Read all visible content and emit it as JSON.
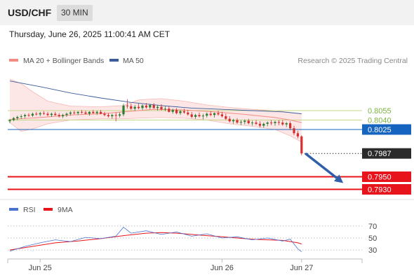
{
  "header": {
    "symbol": "USD/CHF",
    "interval": "30 MIN",
    "datetime": "Thursday, June 26, 2025 11:00:41 AM CET"
  },
  "legend": {
    "ma20_bb": "MA 20 + Bollinger Bands",
    "ma50": "MA 50",
    "source": "Research © 2025 Trading Central"
  },
  "colors": {
    "bullish": "#2e7d32",
    "bearish": "#d32f2f",
    "support": "#e8141c",
    "pivot": "#1565c0",
    "target_line": "#7cb342",
    "arrow": "#2f5fa8",
    "ma20": "#f28b82",
    "ma50": "#3b5b9a",
    "rsi": "#4a72d1",
    "rsi_ma": "#e8141c"
  },
  "price_levels": [
    {
      "label": "0.8055",
      "value": 0.8055,
      "type": "resistance"
    },
    {
      "label": "0.8040",
      "value": 0.804,
      "type": "resistance"
    },
    {
      "label": "0.8025",
      "value": 0.8025,
      "type": "pivot"
    },
    {
      "label": "0.7987",
      "value": 0.7987,
      "type": "last"
    },
    {
      "label": "0.7950",
      "value": 0.795,
      "type": "support"
    },
    {
      "label": "0.7930",
      "value": 0.793,
      "type": "support"
    }
  ],
  "rsi_panel": {
    "rsi_label": "RSI",
    "ma_label": "9MA",
    "ticks": [
      "70",
      "50",
      "30"
    ]
  },
  "x_axis": {
    "labels": [
      "Jun 25",
      "Jun 26",
      "Jun 27"
    ]
  },
  "chart_data": {
    "type": "candlestick",
    "ylim": [
      0.7925,
      0.8125
    ],
    "x_ticks": [
      {
        "label": "Jun 25",
        "index": 8
      },
      {
        "label": "Jun 26",
        "index": 56
      },
      {
        "label": "Jun 27",
        "index": 77
      }
    ],
    "candles": [
      [
        0.8038,
        0.8042,
        0.8035,
        0.804
      ],
      [
        0.804,
        0.8045,
        0.8038,
        0.8043
      ],
      [
        0.8043,
        0.8047,
        0.804,
        0.8045
      ],
      [
        0.8045,
        0.8049,
        0.8042,
        0.8046
      ],
      [
        0.8046,
        0.805,
        0.8043,
        0.8048
      ],
      [
        0.8048,
        0.8051,
        0.8045,
        0.8047
      ],
      [
        0.8047,
        0.8052,
        0.8045,
        0.805
      ],
      [
        0.805,
        0.8053,
        0.8047,
        0.8049
      ],
      [
        0.8049,
        0.8053,
        0.8046,
        0.8051
      ],
      [
        0.8051,
        0.8054,
        0.8048,
        0.805
      ],
      [
        0.805,
        0.8053,
        0.8046,
        0.8048
      ],
      [
        0.8048,
        0.8052,
        0.8045,
        0.805
      ],
      [
        0.805,
        0.8053,
        0.8047,
        0.8048
      ],
      [
        0.8048,
        0.8051,
        0.8044,
        0.8046
      ],
      [
        0.8046,
        0.805,
        0.8043,
        0.8048
      ],
      [
        0.8048,
        0.8052,
        0.8045,
        0.805
      ],
      [
        0.805,
        0.8054,
        0.8047,
        0.8052
      ],
      [
        0.8052,
        0.8055,
        0.8049,
        0.8051
      ],
      [
        0.8051,
        0.8054,
        0.8048,
        0.8053
      ],
      [
        0.8053,
        0.8056,
        0.805,
        0.8052
      ],
      [
        0.8052,
        0.8055,
        0.8049,
        0.805
      ],
      [
        0.805,
        0.8054,
        0.8047,
        0.8053
      ],
      [
        0.8053,
        0.8056,
        0.805,
        0.8051
      ],
      [
        0.8051,
        0.8055,
        0.8048,
        0.8053
      ],
      [
        0.8053,
        0.8056,
        0.8049,
        0.805
      ],
      [
        0.805,
        0.8053,
        0.8046,
        0.8048
      ],
      [
        0.8048,
        0.8051,
        0.8044,
        0.8046
      ],
      [
        0.8046,
        0.805,
        0.8042,
        0.8048
      ],
      [
        0.8048,
        0.8052,
        0.8038,
        0.8047
      ],
      [
        0.8047,
        0.8052,
        0.8044,
        0.8049
      ],
      [
        0.8049,
        0.8066,
        0.8046,
        0.8063
      ],
      [
        0.8063,
        0.8073,
        0.8058,
        0.8062
      ],
      [
        0.8062,
        0.8066,
        0.8056,
        0.8058
      ],
      [
        0.8058,
        0.8064,
        0.8055,
        0.8061
      ],
      [
        0.8061,
        0.8066,
        0.8057,
        0.8059
      ],
      [
        0.8059,
        0.8065,
        0.8056,
        0.8063
      ],
      [
        0.8063,
        0.8067,
        0.8058,
        0.806
      ],
      [
        0.806,
        0.8066,
        0.8057,
        0.8064
      ],
      [
        0.8064,
        0.8067,
        0.8058,
        0.8059
      ],
      [
        0.8059,
        0.8064,
        0.8055,
        0.8061
      ],
      [
        0.8061,
        0.8065,
        0.8055,
        0.8057
      ],
      [
        0.8057,
        0.8062,
        0.8054,
        0.8058
      ],
      [
        0.8058,
        0.8062,
        0.8052,
        0.8053
      ],
      [
        0.8053,
        0.8058,
        0.805,
        0.8056
      ],
      [
        0.8056,
        0.8059,
        0.8049,
        0.8051
      ],
      [
        0.8051,
        0.8056,
        0.8048,
        0.8054
      ],
      [
        0.8054,
        0.8058,
        0.805,
        0.8052
      ],
      [
        0.8052,
        0.8056,
        0.8047,
        0.8049
      ],
      [
        0.8049,
        0.8053,
        0.8043,
        0.8045
      ],
      [
        0.8045,
        0.805,
        0.8042,
        0.8048
      ],
      [
        0.8048,
        0.8052,
        0.8044,
        0.8046
      ],
      [
        0.8046,
        0.805,
        0.8041,
        0.8047
      ],
      [
        0.8047,
        0.8052,
        0.8044,
        0.805
      ],
      [
        0.805,
        0.8054,
        0.8046,
        0.8048
      ],
      [
        0.8048,
        0.8052,
        0.8044,
        0.8051
      ],
      [
        0.8051,
        0.8055,
        0.8047,
        0.8049
      ],
      [
        0.8049,
        0.8053,
        0.8044,
        0.8046
      ],
      [
        0.8046,
        0.805,
        0.804,
        0.8042
      ],
      [
        0.8042,
        0.8046,
        0.8036,
        0.8038
      ],
      [
        0.8038,
        0.8042,
        0.8034,
        0.804
      ],
      [
        0.804,
        0.8043,
        0.8034,
        0.8036
      ],
      [
        0.8036,
        0.804,
        0.8032,
        0.8037
      ],
      [
        0.8037,
        0.8041,
        0.8033,
        0.8039
      ],
      [
        0.8039,
        0.8042,
        0.8033,
        0.8035
      ],
      [
        0.8035,
        0.8039,
        0.8031,
        0.8036
      ],
      [
        0.8036,
        0.804,
        0.8032,
        0.8034
      ],
      [
        0.8034,
        0.8038,
        0.8028,
        0.8031
      ],
      [
        0.8031,
        0.8036,
        0.8028,
        0.8034
      ],
      [
        0.8034,
        0.8038,
        0.803,
        0.8036
      ],
      [
        0.8036,
        0.804,
        0.8032,
        0.8035
      ],
      [
        0.8035,
        0.8039,
        0.8031,
        0.8037
      ],
      [
        0.8037,
        0.804,
        0.8032,
        0.8036
      ],
      [
        0.8036,
        0.804,
        0.8031,
        0.8033
      ],
      [
        0.8033,
        0.8037,
        0.8029,
        0.8035
      ],
      [
        0.8035,
        0.8038,
        0.8024,
        0.8027
      ],
      [
        0.8027,
        0.8031,
        0.8016,
        0.8019
      ],
      [
        0.8019,
        0.8023,
        0.8011,
        0.8014
      ],
      [
        0.8014,
        0.8016,
        0.7984,
        0.7987
      ]
    ],
    "ma20": [
      [
        0,
        0.8041
      ],
      [
        8,
        0.8044
      ],
      [
        16,
        0.8048
      ],
      [
        24,
        0.805
      ],
      [
        30,
        0.8053
      ],
      [
        38,
        0.8057
      ],
      [
        46,
        0.8056
      ],
      [
        54,
        0.8053
      ],
      [
        62,
        0.8049
      ],
      [
        70,
        0.8044
      ],
      [
        74,
        0.804
      ],
      [
        77,
        0.8036
      ]
    ],
    "ma50": [
      [
        0,
        0.8102
      ],
      [
        8,
        0.8093
      ],
      [
        16,
        0.8083
      ],
      [
        24,
        0.8075
      ],
      [
        32,
        0.8068
      ],
      [
        40,
        0.8063
      ],
      [
        48,
        0.8059
      ],
      [
        56,
        0.8057
      ],
      [
        64,
        0.8055
      ],
      [
        72,
        0.8053
      ],
      [
        77,
        0.805
      ]
    ],
    "bb_upper": [
      [
        0,
        0.8105
      ],
      [
        3,
        0.8098
      ],
      [
        6,
        0.8085
      ],
      [
        10,
        0.807
      ],
      [
        16,
        0.8062
      ],
      [
        24,
        0.8061
      ],
      [
        30,
        0.8063
      ],
      [
        34,
        0.8072
      ],
      [
        40,
        0.8074
      ],
      [
        46,
        0.807
      ],
      [
        52,
        0.8064
      ],
      [
        58,
        0.806
      ],
      [
        64,
        0.8057
      ],
      [
        70,
        0.8055
      ],
      [
        74,
        0.8052
      ],
      [
        77,
        0.805
      ]
    ],
    "bb_lower": [
      [
        0,
        0.8036
      ],
      [
        3,
        0.8022
      ],
      [
        6,
        0.8026
      ],
      [
        10,
        0.8034
      ],
      [
        16,
        0.804
      ],
      [
        24,
        0.8042
      ],
      [
        30,
        0.8042
      ],
      [
        34,
        0.8043
      ],
      [
        40,
        0.8044
      ],
      [
        46,
        0.8043
      ],
      [
        52,
        0.804
      ],
      [
        58,
        0.8034
      ],
      [
        64,
        0.803
      ],
      [
        70,
        0.8025
      ],
      [
        74,
        0.8015
      ],
      [
        77,
        0.8005
      ]
    ],
    "forecast_arrow": {
      "from_index": 78,
      "from_value": 0.7987,
      "to_index": 88,
      "to_value": 0.794
    },
    "rsi": {
      "ticks": [
        70,
        50,
        30
      ],
      "ylim": [
        15,
        85
      ],
      "rsi": [
        [
          0,
          28
        ],
        [
          4,
          36
        ],
        [
          8,
          42
        ],
        [
          12,
          47
        ],
        [
          16,
          44
        ],
        [
          20,
          51
        ],
        [
          24,
          49
        ],
        [
          28,
          53
        ],
        [
          30,
          68
        ],
        [
          32,
          58
        ],
        [
          36,
          62
        ],
        [
          40,
          56
        ],
        [
          44,
          60
        ],
        [
          48,
          53
        ],
        [
          52,
          57
        ],
        [
          56,
          50
        ],
        [
          60,
          52
        ],
        [
          64,
          47
        ],
        [
          68,
          50
        ],
        [
          72,
          45
        ],
        [
          74,
          48
        ],
        [
          76,
          32
        ],
        [
          77,
          27
        ]
      ],
      "ma": [
        [
          0,
          30
        ],
        [
          6,
          36
        ],
        [
          12,
          42
        ],
        [
          18,
          45
        ],
        [
          24,
          49
        ],
        [
          30,
          54
        ],
        [
          36,
          58
        ],
        [
          40,
          59
        ],
        [
          44,
          58
        ],
        [
          48,
          56
        ],
        [
          52,
          54
        ],
        [
          56,
          52
        ],
        [
          60,
          50
        ],
        [
          64,
          48
        ],
        [
          68,
          47
        ],
        [
          72,
          46
        ],
        [
          76,
          42
        ],
        [
          77,
          40
        ]
      ]
    }
  }
}
